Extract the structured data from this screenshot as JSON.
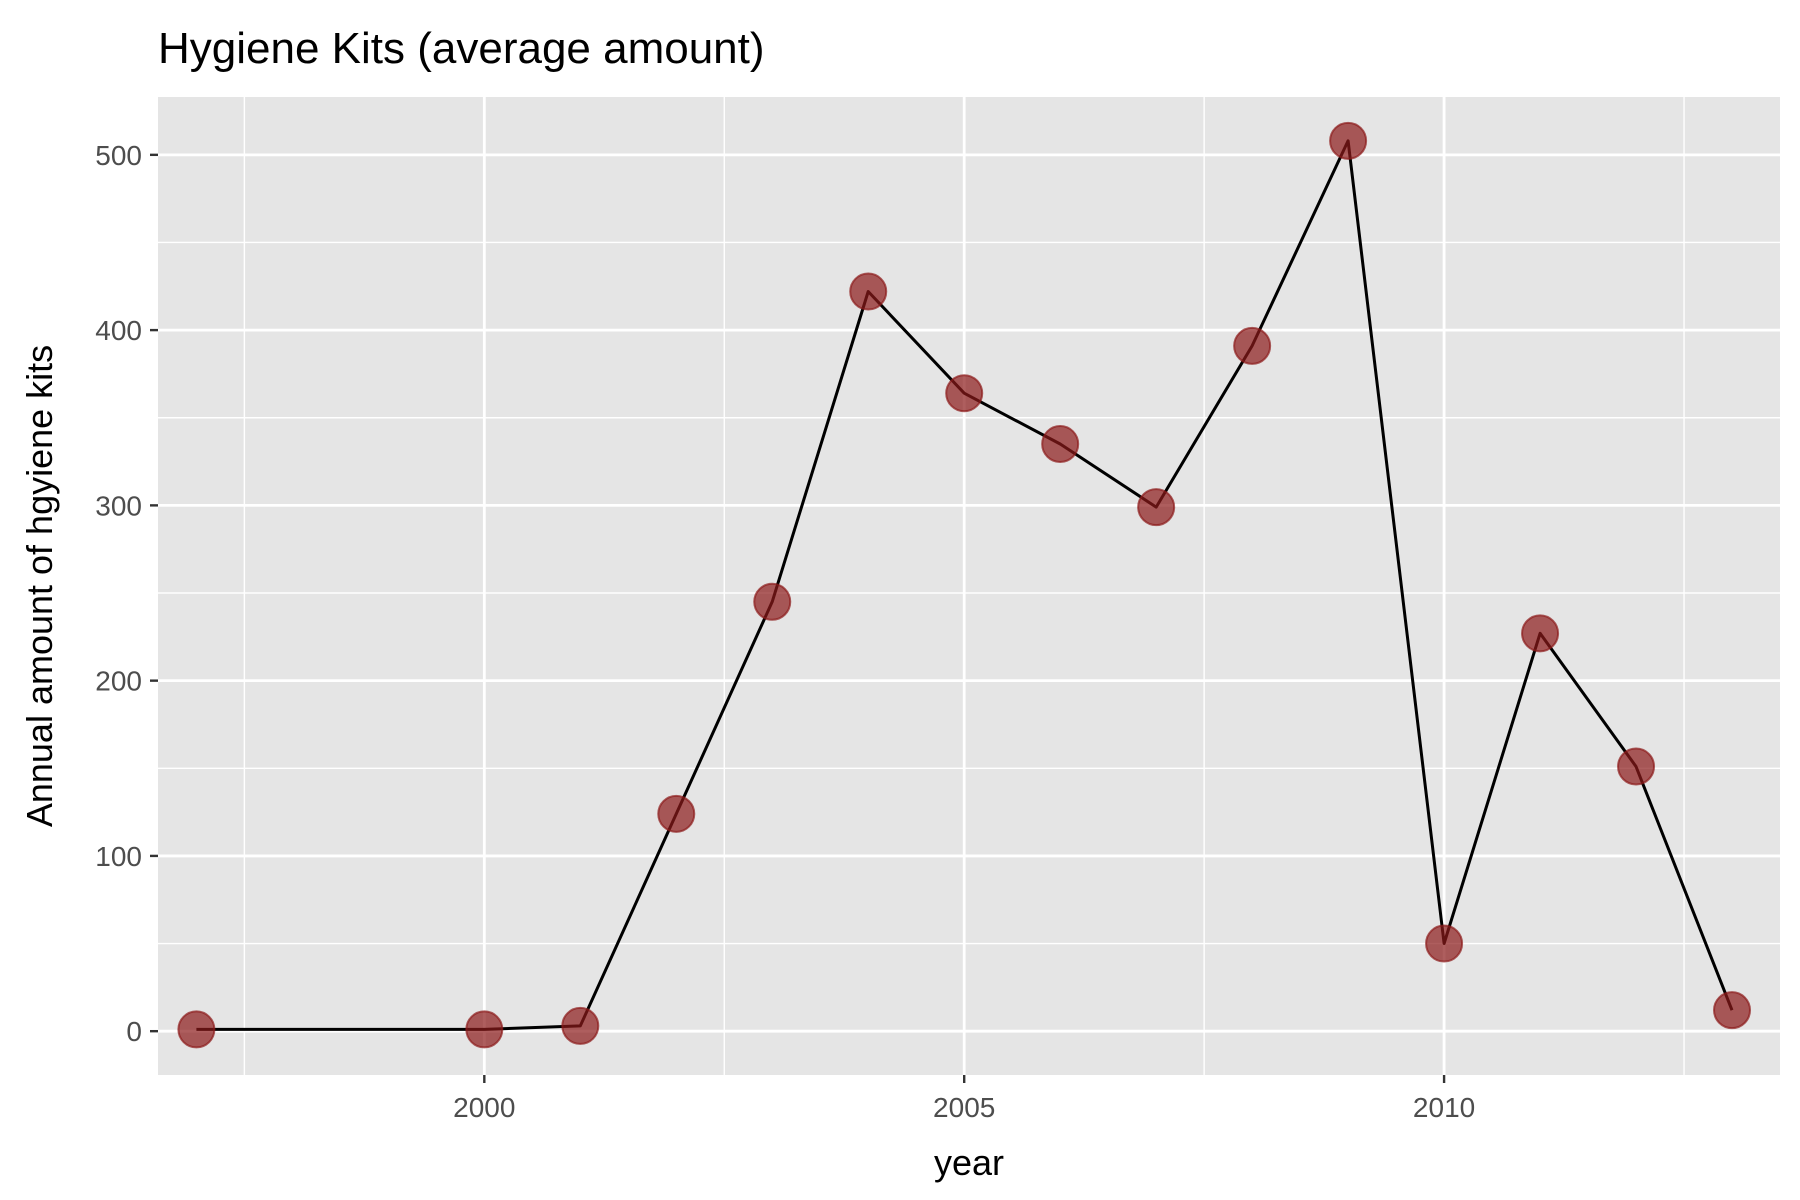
{
  "chart_data": {
    "type": "line",
    "title": "Hygiene Kits (average amount)",
    "xlabel": "year",
    "ylabel": "Annual amount of hgyiene kits",
    "x": [
      1997,
      2000,
      2001,
      2002,
      2003,
      2004,
      2005,
      2006,
      2007,
      2008,
      2009,
      2010,
      2011,
      2012,
      2013
    ],
    "series": [
      {
        "values": [
          1,
          1,
          3,
          124,
          245,
          422,
          364,
          335,
          299,
          391,
          508,
          50,
          227,
          151,
          12
        ]
      }
    ],
    "xlim": [
      1996.6,
      2013.5
    ],
    "ylim": [
      -25,
      533
    ],
    "x_ticks": [
      2000,
      2005,
      2010
    ],
    "x_tick_labels": [
      "2000",
      "2005",
      "2010"
    ],
    "y_ticks": [
      0,
      100,
      200,
      300,
      400,
      500
    ],
    "y_tick_labels": [
      "0",
      "100",
      "200",
      "300",
      "400",
      "500"
    ],
    "grid": true,
    "legend": "none",
    "colors": {
      "panel_background": "#e5e5e5",
      "grid_line": "#ffffff",
      "line": "#000000",
      "point_fill": "#8b1a1a",
      "point_opacity": 0.7
    }
  }
}
